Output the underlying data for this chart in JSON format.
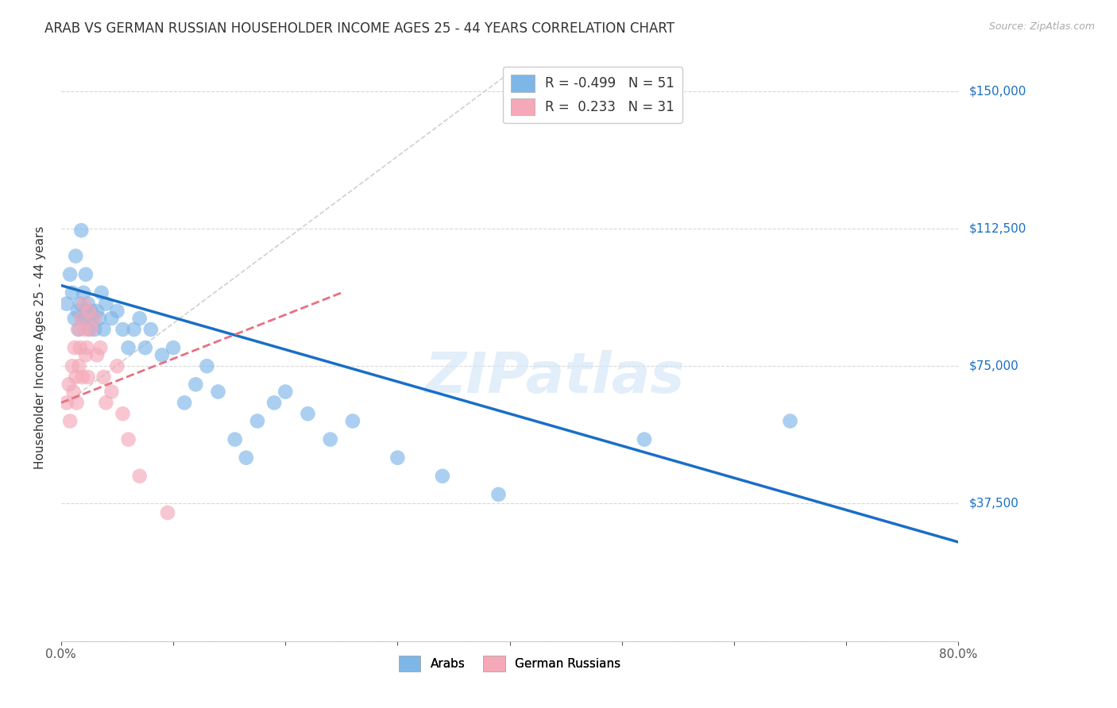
{
  "title": "ARAB VS GERMAN RUSSIAN HOUSEHOLDER INCOME AGES 25 - 44 YEARS CORRELATION CHART",
  "source": "Source: ZipAtlas.com",
  "ylabel": "Householder Income Ages 25 - 44 years",
  "xlim": [
    0.0,
    0.8
  ],
  "ylim": [
    0,
    160000
  ],
  "yticks": [
    0,
    37500,
    75000,
    112500,
    150000
  ],
  "ytick_labels": [
    "",
    "$37,500",
    "$75,000",
    "$112,500",
    "$150,000"
  ],
  "xtick_positions": [
    0.0,
    0.1,
    0.2,
    0.3,
    0.4,
    0.5,
    0.6,
    0.7,
    0.8
  ],
  "xtick_labels": [
    "0.0%",
    "",
    "",
    "",
    "",
    "",
    "",
    "",
    "80.0%"
  ],
  "arab_color": "#7eb6e8",
  "german_color": "#f4a8b8",
  "arab_line_color": "#1a6fc4",
  "german_line_color": "#e87080",
  "ref_line_color": "#d0d0d0",
  "arab_R": -0.499,
  "arab_N": 51,
  "german_R": 0.233,
  "german_N": 31,
  "watermark": "ZIPatlas",
  "title_fontsize": 12,
  "axis_label_fontsize": 11,
  "tick_fontsize": 11,
  "legend_fontsize": 12,
  "arab_x": [
    0.005,
    0.008,
    0.01,
    0.012,
    0.013,
    0.015,
    0.016,
    0.017,
    0.018,
    0.019,
    0.02,
    0.021,
    0.022,
    0.023,
    0.024,
    0.025,
    0.027,
    0.028,
    0.03,
    0.032,
    0.034,
    0.036,
    0.038,
    0.04,
    0.045,
    0.05,
    0.055,
    0.06,
    0.065,
    0.07,
    0.075,
    0.08,
    0.09,
    0.1,
    0.11,
    0.12,
    0.13,
    0.14,
    0.155,
    0.165,
    0.175,
    0.19,
    0.2,
    0.22,
    0.24,
    0.26,
    0.3,
    0.34,
    0.39,
    0.52,
    0.65
  ],
  "arab_y": [
    92000,
    100000,
    95000,
    88000,
    105000,
    90000,
    85000,
    92000,
    112000,
    88000,
    95000,
    90000,
    100000,
    88000,
    92000,
    85000,
    90000,
    88000,
    85000,
    90000,
    88000,
    95000,
    85000,
    92000,
    88000,
    90000,
    85000,
    80000,
    85000,
    88000,
    80000,
    85000,
    78000,
    80000,
    65000,
    70000,
    75000,
    68000,
    55000,
    50000,
    60000,
    65000,
    68000,
    62000,
    55000,
    60000,
    50000,
    45000,
    40000,
    55000,
    60000
  ],
  "german_x": [
    0.005,
    0.007,
    0.008,
    0.01,
    0.011,
    0.012,
    0.013,
    0.014,
    0.015,
    0.016,
    0.017,
    0.018,
    0.019,
    0.02,
    0.021,
    0.022,
    0.023,
    0.024,
    0.025,
    0.027,
    0.03,
    0.032,
    0.035,
    0.038,
    0.04,
    0.045,
    0.05,
    0.055,
    0.06,
    0.07,
    0.095
  ],
  "german_y": [
    65000,
    70000,
    60000,
    75000,
    68000,
    80000,
    72000,
    65000,
    85000,
    75000,
    80000,
    88000,
    72000,
    92000,
    85000,
    78000,
    80000,
    72000,
    90000,
    85000,
    88000,
    78000,
    80000,
    72000,
    65000,
    68000,
    75000,
    62000,
    55000,
    45000,
    35000
  ],
  "arab_line_x0": 0.0,
  "arab_line_y0": 97000,
  "arab_line_x1": 0.8,
  "arab_line_y1": 27000,
  "german_line_x0": 0.0,
  "german_line_y0": 65000,
  "german_line_x1": 0.25,
  "german_line_y1": 95000,
  "ref_line_x0": 0.005,
  "ref_line_y0": 65000,
  "ref_line_x1": 0.4,
  "ref_line_y1": 155000
}
